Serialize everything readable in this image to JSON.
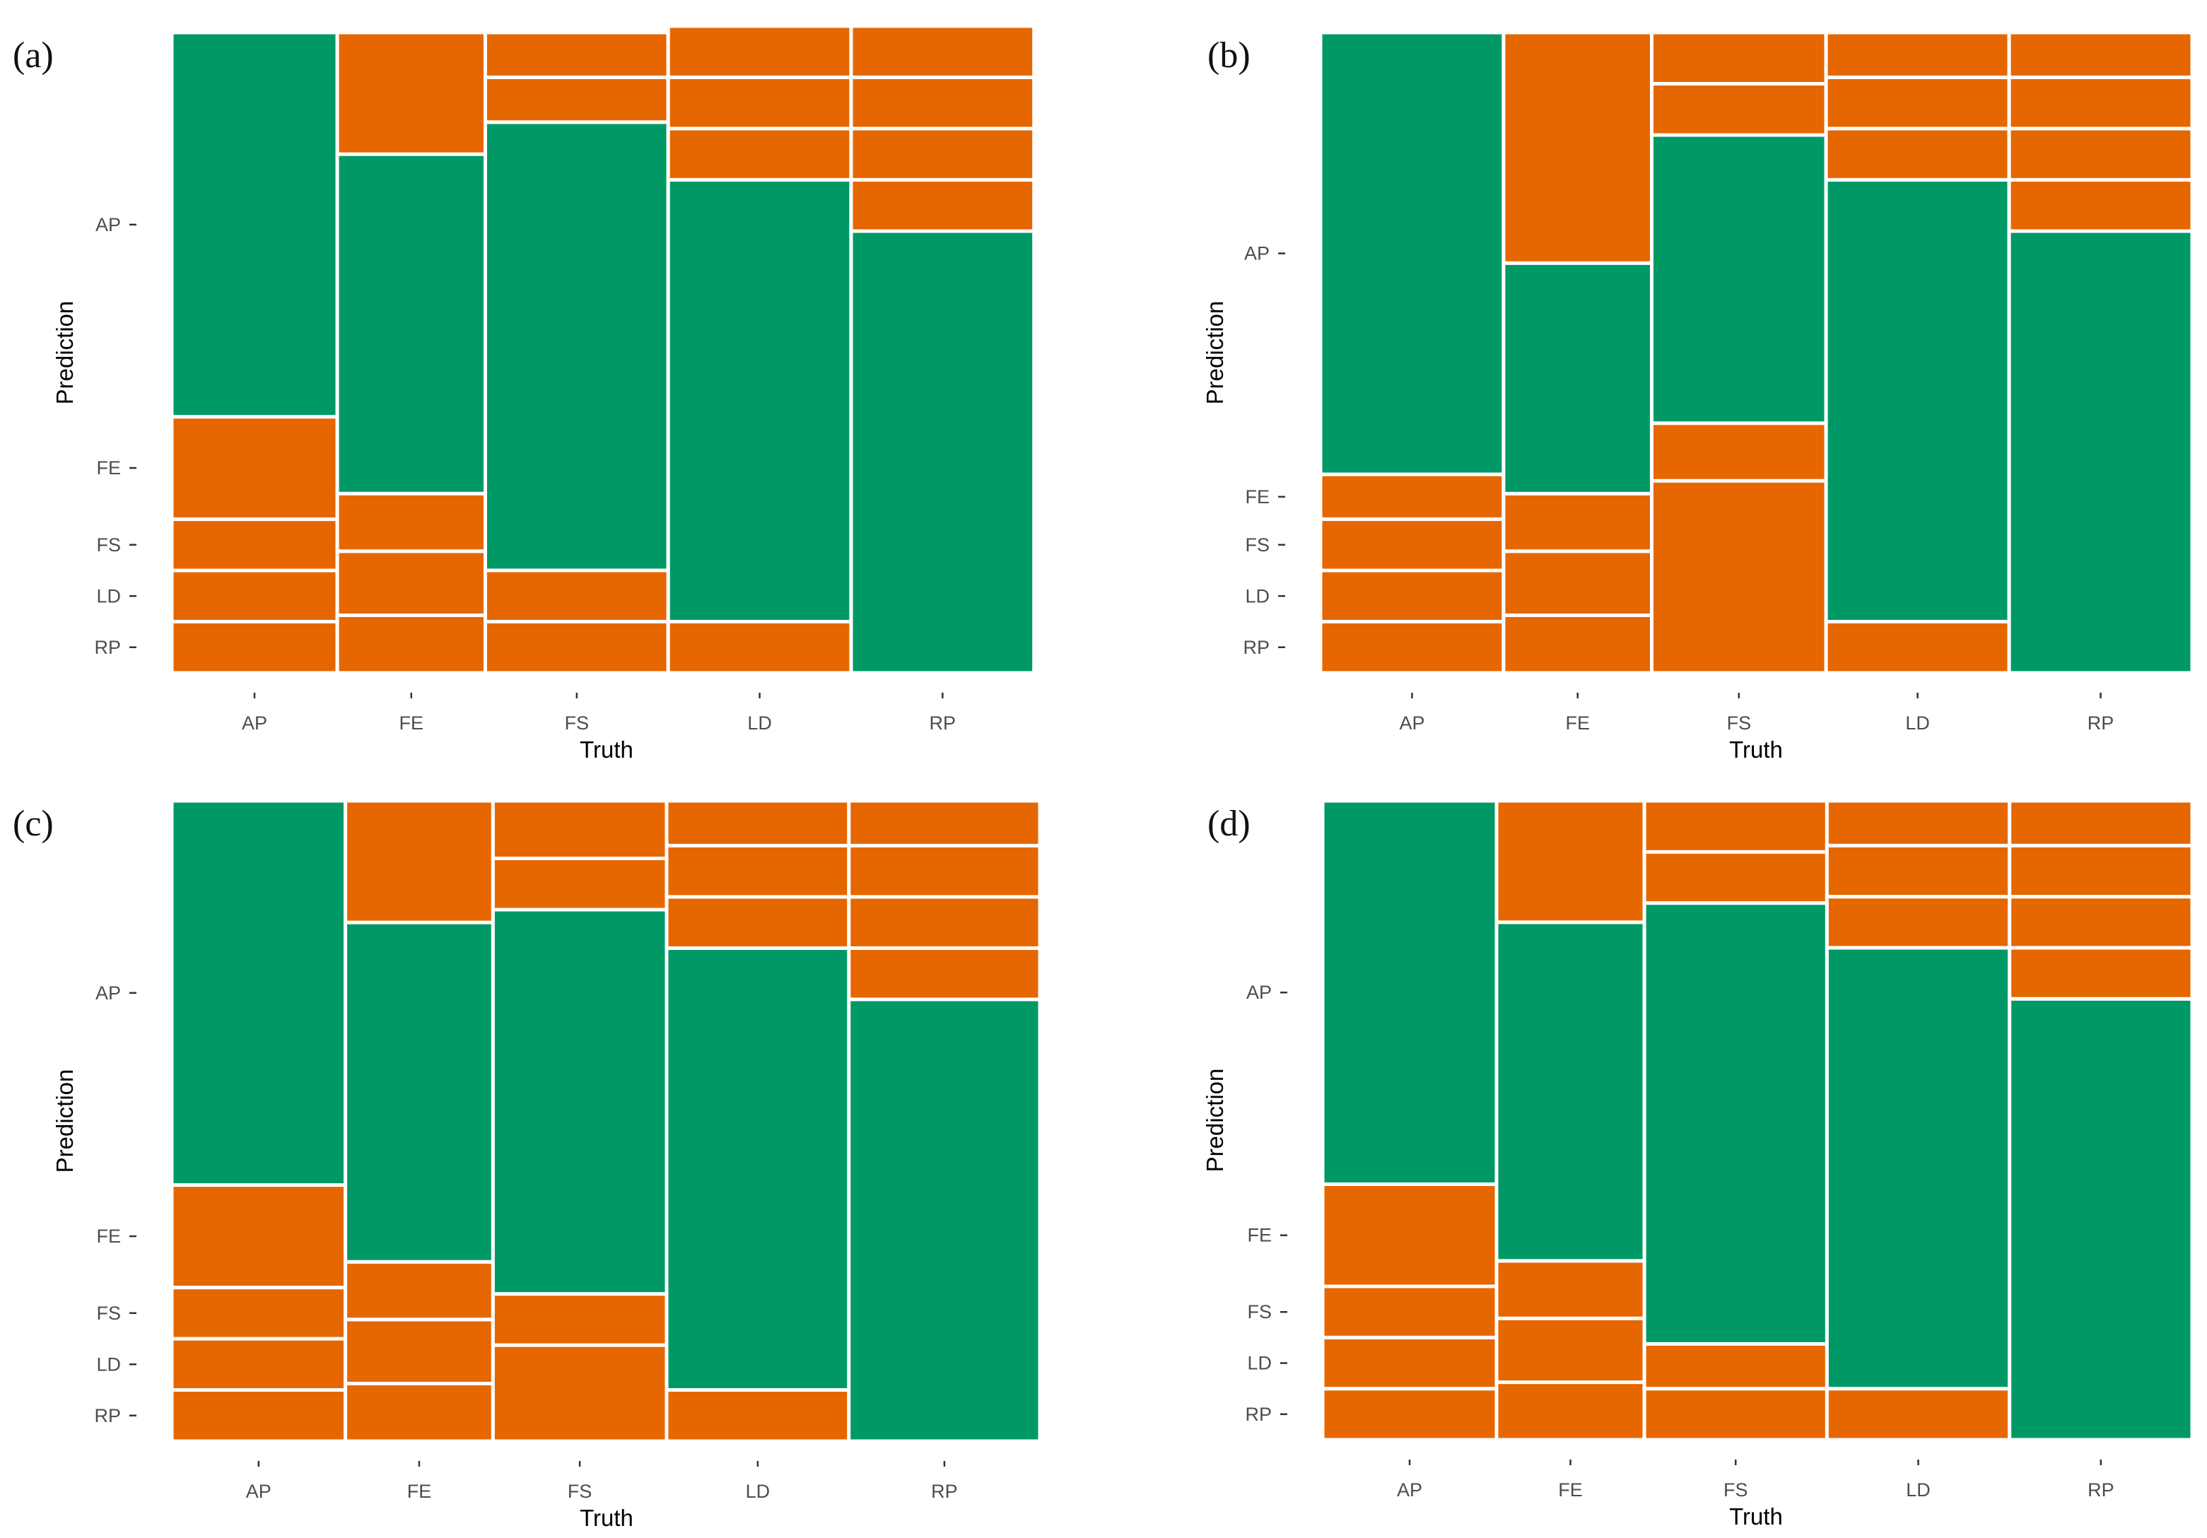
{
  "colors": {
    "correct": "#009966",
    "incorrect": "#e66600",
    "separator": "#ffffff"
  },
  "chart_data": [
    {
      "type": "mosaic",
      "panel_label": "(a)",
      "xlabel": "Truth",
      "ylabel": "Prediction",
      "categories": [
        "AP",
        "FE",
        "FS",
        "LD",
        "RP"
      ],
      "column_widths": [
        0.19,
        0.17,
        0.21,
        0.21,
        0.21
      ],
      "bottom_to_top": [
        "RP",
        "LD",
        "FS",
        "FE",
        "AP"
      ],
      "proportions": [
        [
          0.08,
          0.08,
          0.08,
          0.16,
          0.6
        ],
        [
          0.09,
          0.1,
          0.09,
          0.53,
          0.19
        ],
        [
          0.08,
          0.08,
          0.7,
          0.07,
          0.07
        ],
        [
          0.08,
          0.69,
          0.08,
          0.08,
          0.08
        ],
        [
          0.69,
          0.08,
          0.08,
          0.08,
          0.08
        ]
      ]
    },
    {
      "type": "mosaic",
      "panel_label": "(b)",
      "xlabel": "Truth",
      "ylabel": "Prediction",
      "categories": [
        "AP",
        "FE",
        "FS",
        "LD",
        "RP"
      ],
      "column_widths": [
        0.21,
        0.17,
        0.2,
        0.21,
        0.21
      ],
      "bottom_to_top": [
        "RP",
        "LD",
        "FS",
        "FE",
        "AP"
      ],
      "proportions": [
        [
          0.08,
          0.08,
          0.08,
          0.07,
          0.69
        ],
        [
          0.09,
          0.1,
          0.09,
          0.36,
          0.36
        ],
        [
          0.3,
          0.09,
          0.45,
          0.08,
          0.08
        ],
        [
          0.08,
          0.69,
          0.08,
          0.08,
          0.07
        ],
        [
          0.69,
          0.08,
          0.08,
          0.08,
          0.07
        ]
      ]
    },
    {
      "type": "mosaic",
      "panel_label": "(c)",
      "xlabel": "Truth",
      "ylabel": "Prediction",
      "categories": [
        "AP",
        "FE",
        "FS",
        "LD",
        "RP"
      ],
      "column_widths": [
        0.2,
        0.17,
        0.2,
        0.21,
        0.22
      ],
      "bottom_to_top": [
        "RP",
        "LD",
        "FS",
        "FE",
        "AP"
      ],
      "proportions": [
        [
          0.08,
          0.08,
          0.08,
          0.16,
          0.6
        ],
        [
          0.09,
          0.1,
          0.09,
          0.53,
          0.19
        ],
        [
          0.15,
          0.08,
          0.6,
          0.08,
          0.09
        ],
        [
          0.08,
          0.69,
          0.08,
          0.08,
          0.07
        ],
        [
          0.69,
          0.08,
          0.08,
          0.08,
          0.07
        ]
      ]
    },
    {
      "type": "mosaic",
      "panel_label": "(d)",
      "xlabel": "Truth",
      "ylabel": "Prediction",
      "categories": [
        "AP",
        "FE",
        "FS",
        "LD",
        "RP"
      ],
      "column_widths": [
        0.2,
        0.17,
        0.21,
        0.21,
        0.21
      ],
      "bottom_to_top": [
        "RP",
        "LD",
        "FS",
        "FE",
        "AP"
      ],
      "proportions": [
        [
          0.08,
          0.08,
          0.08,
          0.16,
          0.6
        ],
        [
          0.09,
          0.1,
          0.09,
          0.53,
          0.19
        ],
        [
          0.08,
          0.07,
          0.69,
          0.08,
          0.08
        ],
        [
          0.08,
          0.69,
          0.08,
          0.08,
          0.07
        ],
        [
          0.69,
          0.08,
          0.08,
          0.08,
          0.07
        ]
      ]
    }
  ]
}
